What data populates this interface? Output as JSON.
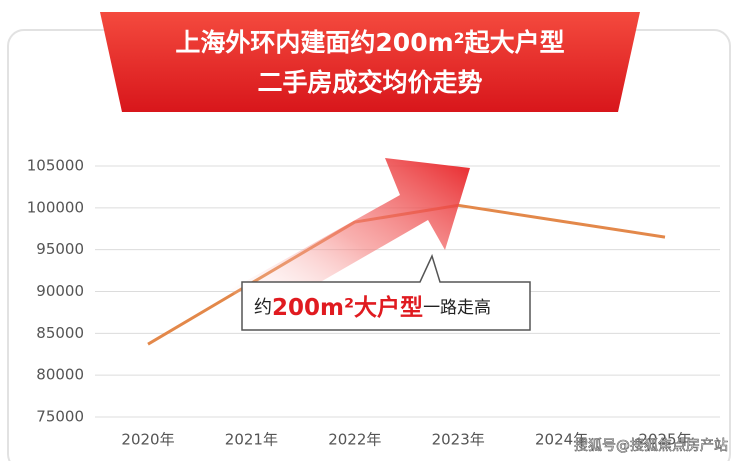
{
  "chart_data": {
    "type": "line",
    "title": "上海外环内建面约200m²起大户型",
    "subtitle": "二手房成交均价走势",
    "categories": [
      "2020年",
      "2021年",
      "2022年",
      "2023年",
      "2024年",
      "2025年"
    ],
    "series": [
      {
        "name": "二手房成交均价",
        "color": "#e3884a",
        "values": [
          83700,
          91000,
          98300,
          100300,
          98400,
          96500
        ]
      }
    ],
    "ylim": [
      75000,
      105000
    ],
    "yticks": [
      75000,
      80000,
      85000,
      90000,
      95000,
      100000,
      105000
    ],
    "grid": true,
    "annotation": {
      "prefix": "约",
      "highlight": "200m²大户型",
      "suffix": "一路走高"
    },
    "watermark": "搜狐号@搜狐焦点房产站"
  }
}
